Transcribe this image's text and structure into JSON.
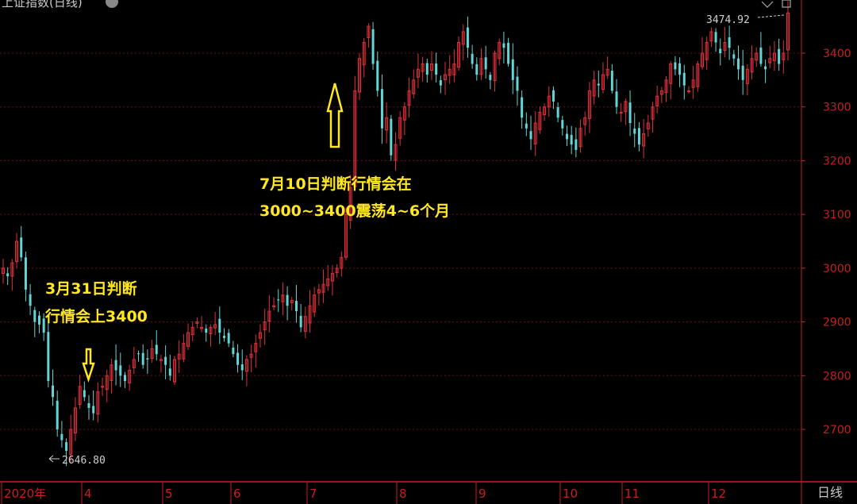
{
  "header": {
    "title": "上证指数(日线)",
    "period_label": "日线"
  },
  "colors": {
    "background": "#000000",
    "up": "#e0303a",
    "down": "#62d6d6",
    "axis": "#c81e1e",
    "grid": "#6a1010",
    "annotation": "#ffe820",
    "label": "#d0d0d0"
  },
  "chart_data": {
    "type": "candlestick",
    "title": "上证指数(日线)",
    "ylim": [
      2620,
      3480
    ],
    "yticks": [
      2700,
      2800,
      2900,
      3000,
      3100,
      3200,
      3300,
      3400
    ],
    "grid": true,
    "x_labels": [
      "2020年",
      "4",
      "5",
      "6",
      "7",
      "8",
      "9",
      "10",
      "11",
      "12"
    ],
    "high_marker": {
      "value": 3474.92,
      "label": "3474.92"
    },
    "low_marker": {
      "value": 2646.8,
      "label": "2646.80"
    },
    "annotations": [
      {
        "text_lines": [
          "3月31日判断",
          "行情会上3400"
        ],
        "arrow": "down",
        "date": "3月31日"
      },
      {
        "text_lines": [
          "7月10日判断行情会在",
          "3000~3400震荡4~6个月"
        ],
        "arrow": "up",
        "date": "7月10日"
      }
    ],
    "closes_approx": [
      3000,
      2985,
      3010,
      3050,
      3020,
      2960,
      2930,
      2900,
      2895,
      2880,
      2790,
      2760,
      2700,
      2680,
      2660,
      2700,
      2740,
      2780,
      2760,
      2740,
      2730,
      2770,
      2780,
      2800,
      2820,
      2810,
      2800,
      2790,
      2810,
      2830,
      2840,
      2820,
      2830,
      2850,
      2840,
      2830,
      2820,
      2800,
      2830,
      2840,
      2860,
      2880,
      2890,
      2900,
      2890,
      2880,
      2890,
      2895,
      2880,
      2870,
      2860,
      2840,
      2820,
      2810,
      2830,
      2840,
      2860,
      2880,
      2900,
      2920,
      2930,
      2940,
      2950,
      2930,
      2940,
      2920,
      2890,
      2910,
      2930,
      2950,
      2960,
      2970,
      2980,
      2990,
      3000,
      3020,
      3100,
      3150,
      3330,
      3390,
      3420,
      3450,
      3380,
      3330,
      3260,
      3280,
      3210,
      3230,
      3280,
      3300,
      3330,
      3350,
      3370,
      3380,
      3360,
      3380,
      3360,
      3340,
      3360,
      3370,
      3380,
      3420,
      3440,
      3410,
      3380,
      3360,
      3390,
      3370,
      3350,
      3400,
      3420,
      3410,
      3380,
      3350,
      3330,
      3280,
      3260,
      3240,
      3270,
      3290,
      3300,
      3320,
      3310,
      3280,
      3260,
      3240,
      3230,
      3220,
      3260,
      3280,
      3330,
      3350,
      3340,
      3360,
      3370,
      3330,
      3300,
      3290,
      3310,
      3270,
      3250,
      3230,
      3250,
      3270,
      3300,
      3320,
      3330,
      3350,
      3380,
      3370,
      3360,
      3340,
      3330,
      3350,
      3380,
      3400,
      3420,
      3440,
      3420,
      3400,
      3420,
      3410,
      3390,
      3370,
      3350,
      3370,
      3390,
      3400,
      3380,
      3370,
      3390,
      3400,
      3380,
      3400,
      3475
    ]
  }
}
